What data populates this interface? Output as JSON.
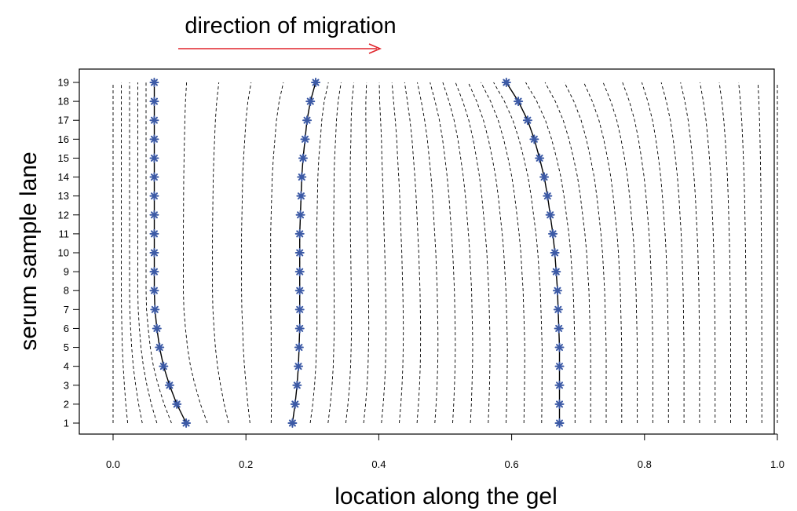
{
  "chart_data": {
    "type": "line",
    "title": "direction of migration",
    "xlabel": "location along the gel",
    "ylabel": "serum sample lane",
    "xlim": [
      0.0,
      1.0
    ],
    "ylim": [
      1,
      19
    ],
    "x_ticks": [
      "0.0",
      "0.2",
      "0.4",
      "0.6",
      "0.8",
      "1.0"
    ],
    "y_ticks": [
      "1",
      "2",
      "3",
      "4",
      "5",
      "6",
      "7",
      "8",
      "9",
      "10",
      "11",
      "12",
      "13",
      "14",
      "15",
      "16",
      "17",
      "18",
      "19"
    ],
    "grid": false,
    "legend": "none",
    "colors": {
      "arrow": "#e0242b",
      "marker": "#3c5aa6",
      "line": "#000000",
      "dashed": "#000000"
    },
    "lanes": [
      1,
      2,
      3,
      4,
      5,
      6,
      7,
      8,
      9,
      10,
      11,
      12,
      13,
      14,
      15,
      16,
      17,
      18,
      19
    ],
    "series": [
      {
        "values": [
          0.11,
          0.096,
          0.085,
          0.076,
          0.07,
          0.066,
          0.063,
          0.062,
          0.062,
          0.062,
          0.062,
          0.062,
          0.062,
          0.062,
          0.062,
          0.062,
          0.062,
          0.062,
          0.062
        ]
      },
      {
        "values": [
          0.27,
          0.274,
          0.277,
          0.279,
          0.28,
          0.281,
          0.281,
          0.281,
          0.281,
          0.281,
          0.281,
          0.282,
          0.283,
          0.284,
          0.286,
          0.289,
          0.292,
          0.297,
          0.305
        ]
      },
      {
        "values": [
          0.672,
          0.672,
          0.672,
          0.672,
          0.672,
          0.671,
          0.67,
          0.669,
          0.667,
          0.665,
          0.662,
          0.658,
          0.654,
          0.649,
          0.642,
          0.634,
          0.624,
          0.61,
          0.592
        ]
      }
    ]
  }
}
